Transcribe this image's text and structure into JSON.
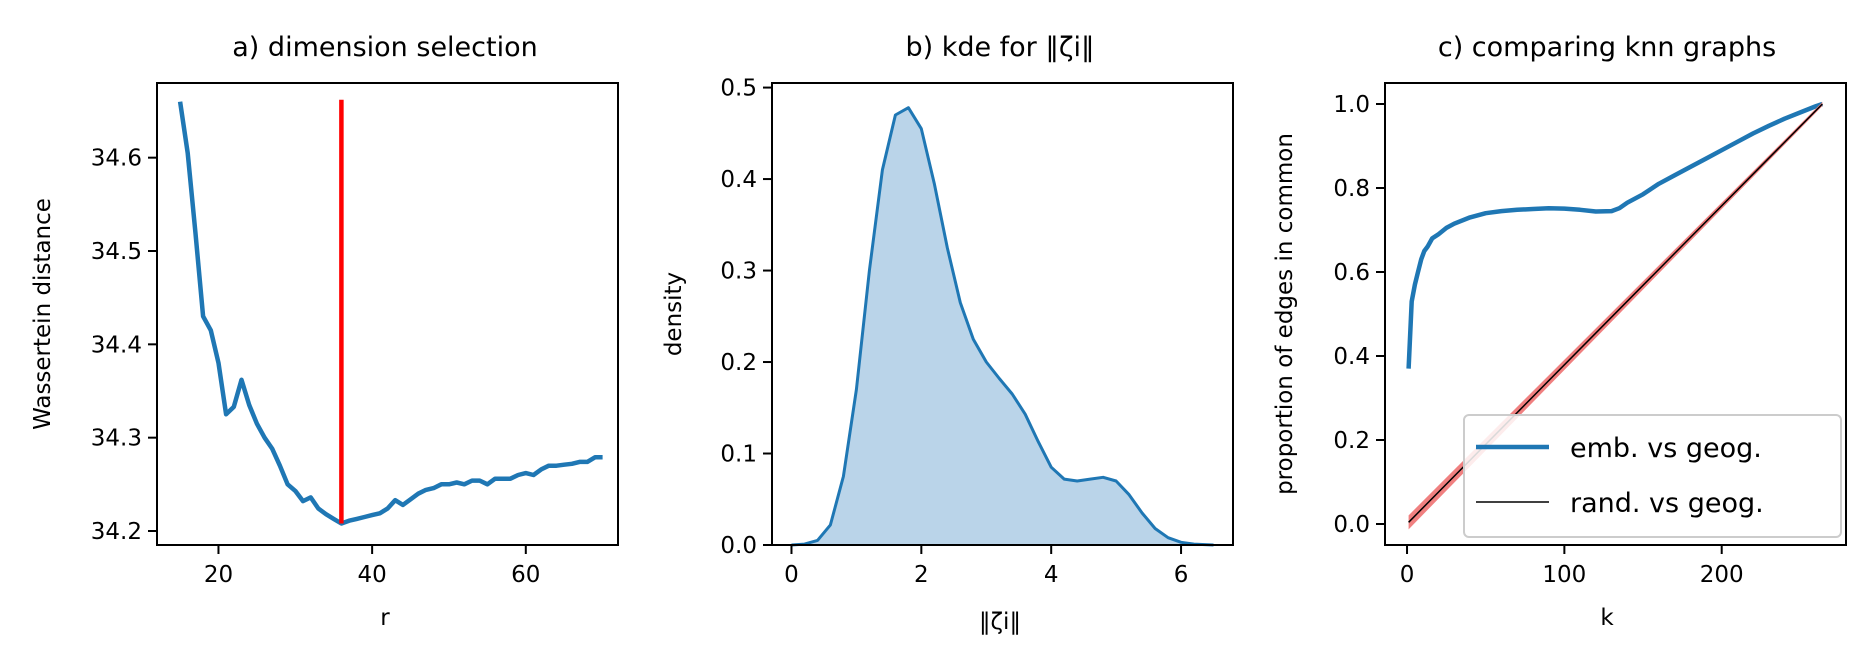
{
  "chart_data": [
    {
      "type": "line",
      "title": "a) dimension selection",
      "xlabel": "r",
      "ylabel": "Wassertein distance",
      "xlim": [
        12,
        72
      ],
      "ylim": [
        34.185,
        34.68
      ],
      "xticks": [
        20,
        40,
        60
      ],
      "yticks": [
        34.2,
        34.3,
        34.4,
        34.5,
        34.6
      ],
      "ytick_labels": [
        "34.2",
        "34.3",
        "34.4",
        "34.5",
        "34.6"
      ],
      "grid": false,
      "series": [
        {
          "color": "#1f77b4",
          "x": [
            15,
            16,
            17,
            18,
            19,
            20,
            21,
            22,
            23,
            24,
            25,
            26,
            27,
            28,
            29,
            30,
            31,
            32,
            33,
            34,
            35,
            36,
            37,
            38,
            39,
            40,
            41,
            42,
            43,
            44,
            45,
            46,
            47,
            48,
            49,
            50,
            51,
            52,
            53,
            54,
            55,
            56,
            57,
            58,
            59,
            60,
            61,
            62,
            63,
            64,
            65,
            66,
            67,
            68,
            69,
            70
          ],
          "y": [
            34.66,
            34.605,
            34.52,
            34.43,
            34.415,
            34.38,
            34.325,
            34.333,
            34.362,
            34.335,
            34.315,
            34.3,
            34.288,
            34.27,
            34.25,
            34.243,
            34.232,
            34.236,
            34.224,
            34.218,
            34.213,
            34.208,
            34.211,
            34.213,
            34.215,
            34.217,
            34.219,
            34.224,
            34.233,
            34.228,
            34.234,
            34.24,
            34.244,
            34.246,
            34.25,
            34.25,
            34.252,
            34.25,
            34.254,
            34.254,
            34.25,
            34.256,
            34.256,
            34.256,
            34.26,
            34.262,
            34.26,
            34.266,
            34.27,
            34.27,
            34.271,
            34.272,
            34.274,
            34.274,
            34.279,
            34.279
          ]
        },
        {
          "color": "#ff0000",
          "x": [
            36,
            36
          ],
          "y": [
            34.208,
            34.662
          ]
        }
      ]
    },
    {
      "type": "area",
      "title": "b) kde for ‖ζi‖",
      "xlabel": "‖ζi‖",
      "ylabel": "density",
      "xlim": [
        -0.3,
        6.8
      ],
      "ylim": [
        0,
        0.505
      ],
      "xticks": [
        0,
        2,
        4,
        6
      ],
      "yticks": [
        0.0,
        0.1,
        0.2,
        0.3,
        0.4,
        0.5
      ],
      "ytick_labels": [
        "0.0",
        "0.1",
        "0.2",
        "0.3",
        "0.4",
        "0.5"
      ],
      "grid": false,
      "series": [
        {
          "color": "#1f77b4",
          "fill": "#bad4e9",
          "x": [
            0.0,
            0.2,
            0.4,
            0.6,
            0.8,
            1.0,
            1.2,
            1.4,
            1.6,
            1.8,
            2.0,
            2.2,
            2.4,
            2.6,
            2.8,
            3.0,
            3.2,
            3.4,
            3.6,
            3.8,
            4.0,
            4.2,
            4.4,
            4.6,
            4.8,
            5.0,
            5.2,
            5.4,
            5.6,
            5.8,
            6.0,
            6.2,
            6.5
          ],
          "y": [
            0.0,
            0.001,
            0.005,
            0.022,
            0.075,
            0.17,
            0.3,
            0.41,
            0.47,
            0.478,
            0.455,
            0.395,
            0.325,
            0.265,
            0.225,
            0.2,
            0.182,
            0.165,
            0.143,
            0.113,
            0.085,
            0.072,
            0.07,
            0.072,
            0.074,
            0.07,
            0.055,
            0.035,
            0.018,
            0.008,
            0.003,
            0.001,
            0.0
          ]
        }
      ]
    },
    {
      "type": "line",
      "title": "c) comparing knn graphs",
      "xlabel": "k",
      "ylabel": "proportion of edges in common",
      "xlim": [
        -14,
        279
      ],
      "ylim": [
        -0.05,
        1.05
      ],
      "xticks": [
        0,
        100,
        200
      ],
      "yticks": [
        0.0,
        0.2,
        0.4,
        0.6,
        0.8,
        1.0
      ],
      "ytick_labels": [
        "0.0",
        "0.2",
        "0.4",
        "0.6",
        "0.8",
        "1.0"
      ],
      "grid": false,
      "legend_position": "lower-right",
      "series": [
        {
          "name": "emb. vs geog.",
          "color": "#1f77b4",
          "x": [
            1,
            3,
            5,
            7,
            9,
            11,
            13,
            16,
            20,
            25,
            30,
            40,
            50,
            60,
            70,
            80,
            90,
            100,
            110,
            120,
            130,
            135,
            140,
            150,
            160,
            170,
            180,
            190,
            200,
            210,
            220,
            230,
            240,
            250,
            260,
            264
          ],
          "y": [
            0.37,
            0.53,
            0.57,
            0.6,
            0.63,
            0.65,
            0.66,
            0.68,
            0.69,
            0.705,
            0.715,
            0.73,
            0.74,
            0.745,
            0.748,
            0.75,
            0.752,
            0.751,
            0.748,
            0.744,
            0.745,
            0.752,
            0.765,
            0.785,
            0.81,
            0.83,
            0.85,
            0.87,
            0.89,
            0.91,
            0.93,
            0.948,
            0.965,
            0.98,
            0.995,
            1.0
          ]
        },
        {
          "name": "rand. vs geog.",
          "color": "#000000",
          "band_color": "#f08080",
          "x": [
            1,
            264
          ],
          "y": [
            0.004,
            1.0
          ]
        }
      ]
    }
  ]
}
